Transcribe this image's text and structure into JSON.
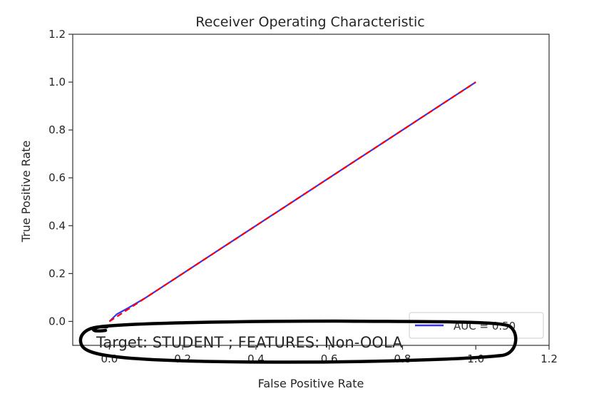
{
  "chart_data": {
    "type": "line",
    "title": "Receiver Operating Characteristic",
    "xlabel": "False Positive Rate",
    "ylabel": "True Positive Rate",
    "xlim": [
      -0.1,
      1.2
    ],
    "ylim": [
      -0.1,
      1.2
    ],
    "xticks": [
      0.0,
      0.2,
      0.4,
      0.6,
      0.8,
      1.0,
      1.2
    ],
    "yticks": [
      0.0,
      0.2,
      0.4,
      0.6,
      0.8,
      1.0,
      1.2
    ],
    "xtick_labels": [
      "0.0",
      "0.2",
      "0.4",
      "0.6",
      "0.8",
      "1.0",
      "1.2"
    ],
    "ytick_labels": [
      "0.0",
      "0.2",
      "0.4",
      "0.6",
      "0.8",
      "1.0",
      "1.2"
    ],
    "grid": false,
    "legend_position": "bottom-right",
    "series": [
      {
        "name": "AUC = 0.50",
        "color": "#3333ff",
        "style": "solid",
        "x": [
          0.0,
          0.02,
          0.05,
          0.1,
          0.2,
          0.3,
          0.4,
          0.5,
          0.6,
          0.7,
          0.8,
          0.9,
          1.0
        ],
        "y": [
          0.0,
          0.03,
          0.055,
          0.1,
          0.2,
          0.3,
          0.4,
          0.5,
          0.6,
          0.7,
          0.8,
          0.9,
          1.0
        ]
      },
      {
        "color": "#ff0000",
        "style": "dashed",
        "x": [
          0.0,
          1.0
        ],
        "y": [
          0.0,
          1.0
        ]
      }
    ],
    "annotation": "Target: STUDENT ; FEATURES: Non-OOLA"
  }
}
